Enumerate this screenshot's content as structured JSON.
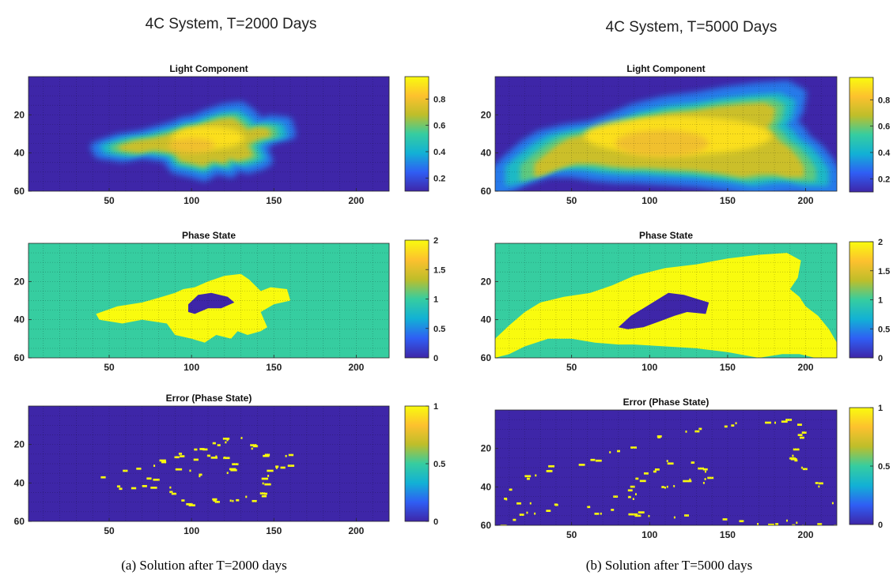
{
  "columns": [
    {
      "title": "4C System, T=2000 Days",
      "caption": "(a)  Solution after T=2000 days"
    },
    {
      "title": "4C System, T=5000 Days",
      "caption": "(b)  Solution after T=5000 days"
    }
  ],
  "colormap": [
    "#3e26a8",
    "#2f5ef4",
    "#12b1d5",
    "#36cda0",
    "#bebe2a",
    "#fdc12e",
    "#f9fb0e"
  ],
  "chart_data": [
    {
      "type": "heatmap",
      "title": "Light Component",
      "x_ticks": [
        "50",
        "100",
        "150",
        "200"
      ],
      "y_ticks": [
        "20",
        "40",
        "60"
      ],
      "xlim": [
        1,
        220
      ],
      "ylim": [
        0,
        60
      ],
      "colorbar_ticks": [
        "0.2",
        "0.4",
        "0.6",
        "0.8"
      ],
      "clim": [
        0.1,
        0.97
      ],
      "grid": true,
      "blob": {
        "x_range": [
          42,
          160
        ],
        "y_range": [
          17,
          53
        ],
        "peak": 0.95
      }
    },
    {
      "type": "heatmap",
      "title": "Phase State",
      "x_ticks": [
        "50",
        "100",
        "150",
        "200"
      ],
      "y_ticks": [
        "20",
        "40",
        "60"
      ],
      "xlim": [
        1,
        220
      ],
      "ylim": [
        0,
        60
      ],
      "colorbar_ticks": [
        "0",
        "0.5",
        "1",
        "1.5",
        "2"
      ],
      "clim": [
        0,
        2
      ],
      "grid": true,
      "background_value": 1,
      "region_values": [
        2,
        0
      ]
    },
    {
      "type": "heatmap",
      "title": "Error (Phase State)",
      "x_ticks": [
        "50",
        "100",
        "150",
        "200"
      ],
      "y_ticks": [
        "20",
        "40",
        "60"
      ],
      "xlim": [
        1,
        220
      ],
      "ylim": [
        0,
        60
      ],
      "colorbar_ticks": [
        "0",
        "0.5",
        "1"
      ],
      "clim": [
        0,
        1
      ],
      "grid": true
    },
    {
      "type": "heatmap",
      "title": "Light Component",
      "x_ticks": [
        "50",
        "100",
        "150",
        "200"
      ],
      "y_ticks": [
        "20",
        "40",
        "60"
      ],
      "xlim": [
        1,
        220
      ],
      "ylim": [
        0,
        60
      ],
      "colorbar_ticks": [
        "0.2",
        "0.4",
        "0.6",
        "0.8"
      ],
      "clim": [
        0.1,
        0.97
      ],
      "grid": true,
      "blob": {
        "x_range": [
          1,
          220
        ],
        "y_range": [
          5,
          60
        ],
        "peak": 0.95
      }
    },
    {
      "type": "heatmap",
      "title": "Phase State",
      "x_ticks": [
        "50",
        "100",
        "150",
        "200"
      ],
      "y_ticks": [
        "20",
        "40",
        "60"
      ],
      "xlim": [
        1,
        220
      ],
      "ylim": [
        0,
        60
      ],
      "colorbar_ticks": [
        "0",
        "0.5",
        "1",
        "1.5",
        "2"
      ],
      "clim": [
        0,
        2
      ],
      "grid": true,
      "background_value": 1,
      "region_values": [
        2,
        0
      ]
    },
    {
      "type": "heatmap",
      "title": "Error (Phase State)",
      "x_ticks": [
        "50",
        "100",
        "150",
        "200"
      ],
      "y_ticks": [
        "20",
        "40",
        "60"
      ],
      "xlim": [
        1,
        220
      ],
      "ylim": [
        0,
        60
      ],
      "colorbar_ticks": [
        "0",
        "0.5",
        "1"
      ],
      "clim": [
        0,
        1
      ],
      "grid": true
    }
  ]
}
